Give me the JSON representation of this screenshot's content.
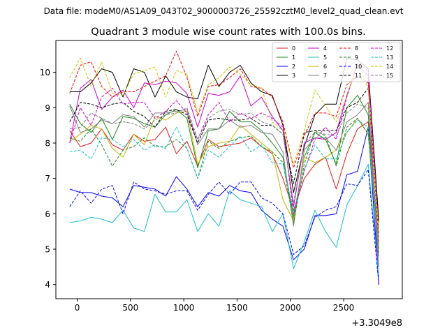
{
  "chart_data": {
    "type": "line",
    "suptitle": "Data file: modeM0/AS1A09_043T02_9000003726_25592cztM0_level2_quad_clean.evt",
    "title": "Quadrant 3 module wise count rates with 100.0s bins.",
    "xlabel": "",
    "ylabel": "",
    "x_offset_label": "+3.3049e8",
    "xlim": [
      -200,
      3050
    ],
    "ylim": [
      3.6,
      10.9
    ],
    "x_ticks": [
      0,
      500,
      1000,
      1500,
      2000,
      2500
    ],
    "y_ticks": [
      4,
      5,
      6,
      7,
      8,
      9,
      10
    ],
    "grid": false,
    "legend_position": "top-right",
    "x": [
      -70,
      30,
      130,
      230,
      330,
      430,
      530,
      630,
      730,
      830,
      930,
      1030,
      1130,
      1230,
      1330,
      1430,
      1530,
      1630,
      1730,
      1830,
      1930,
      2030,
      2130,
      2230,
      2330,
      2430,
      2530,
      2630,
      2730,
      2830
    ],
    "series": [
      {
        "name": "0",
        "color": "#e31a1c",
        "dash": "solid",
        "values": [
          8.35,
          7.9,
          8.0,
          8.4,
          7.95,
          7.8,
          8.25,
          8.05,
          8.1,
          8.45,
          7.7,
          8.05,
          7.35,
          8.1,
          7.9,
          7.95,
          8.0,
          8.15,
          7.9,
          7.7,
          7.0,
          6.1,
          7.0,
          7.4,
          7.6,
          6.7,
          7.7,
          8.4,
          8.6,
          5.0
        ]
      },
      {
        "name": "1",
        "color": "#1a8a1a",
        "dash": "solid",
        "values": [
          9.1,
          8.55,
          8.3,
          8.7,
          8.1,
          8.75,
          8.7,
          8.55,
          8.45,
          8.8,
          8.95,
          8.7,
          7.3,
          8.35,
          8.4,
          8.9,
          8.6,
          8.6,
          8.35,
          8.0,
          7.6,
          5.9,
          7.6,
          8.3,
          8.1,
          7.4,
          9.0,
          9.35,
          8.8,
          4.9
        ]
      },
      {
        "name": "2",
        "color": "#0000ff",
        "dash": "solid",
        "values": [
          6.7,
          6.6,
          6.6,
          6.5,
          6.45,
          6.2,
          6.8,
          6.75,
          6.7,
          6.5,
          7.05,
          6.7,
          6.2,
          6.6,
          6.5,
          6.8,
          6.65,
          6.6,
          6.1,
          5.85,
          5.65,
          4.7,
          5.0,
          5.95,
          5.95,
          6.0,
          7.1,
          7.2,
          8.45,
          4.0
        ]
      },
      {
        "name": "3",
        "color": "#000000",
        "dash": "solid",
        "values": [
          9.45,
          9.45,
          9.7,
          10.1,
          10.0,
          9.3,
          10.1,
          10.0,
          9.3,
          9.9,
          9.45,
          9.3,
          9.25,
          10.2,
          9.6,
          10.0,
          10.2,
          9.7,
          9.45,
          9.35,
          8.5,
          6.6,
          7.9,
          8.8,
          9.1,
          9.1,
          10.4,
          10.35,
          10.1,
          5.8
        ]
      },
      {
        "name": "4",
        "color": "#cc00cc",
        "dash": "solid",
        "values": [
          8.0,
          9.55,
          9.8,
          8.95,
          9.3,
          9.5,
          9.0,
          9.7,
          9.65,
          9.75,
          9.7,
          9.4,
          8.45,
          9.4,
          9.35,
          9.45,
          9.9,
          9.05,
          9.3,
          8.75,
          8.35,
          6.2,
          8.0,
          8.15,
          8.1,
          8.3,
          9.35,
          10.2,
          9.9,
          4.0
        ]
      },
      {
        "name": "5",
        "color": "#17becf",
        "dash": "solid",
        "values": [
          5.75,
          5.8,
          5.9,
          5.85,
          5.75,
          6.1,
          5.6,
          5.5,
          6.55,
          6.05,
          6.05,
          6.4,
          5.5,
          6.0,
          5.65,
          6.65,
          6.4,
          6.3,
          6.2,
          5.5,
          6.0,
          4.45,
          5.2,
          6.1,
          5.5,
          5.05,
          6.25,
          6.8,
          7.4,
          4.2
        ]
      },
      {
        "name": "6",
        "color": "#c8b400",
        "dash": "solid",
        "values": [
          8.05,
          8.25,
          8.5,
          8.4,
          7.85,
          7.6,
          8.25,
          7.95,
          8.75,
          8.65,
          8.85,
          8.9,
          7.4,
          7.9,
          8.0,
          8.05,
          8.5,
          8.25,
          8.0,
          7.75,
          6.4,
          5.8,
          7.6,
          7.45,
          7.6,
          7.8,
          8.3,
          8.7,
          8.25,
          4.9
        ]
      },
      {
        "name": "7",
        "color": "#808080",
        "dash": "solid",
        "values": [
          9.05,
          8.3,
          8.4,
          8.65,
          8.55,
          8.8,
          8.75,
          8.45,
          8.85,
          8.85,
          8.9,
          8.95,
          7.95,
          8.4,
          8.4,
          8.65,
          8.45,
          8.5,
          8.3,
          8.25,
          7.75,
          5.65,
          7.8,
          8.15,
          8.15,
          7.8,
          8.6,
          8.8,
          9.15,
          4.5
        ]
      },
      {
        "name": "8",
        "color": "#ff0000",
        "dash": "dashed",
        "values": [
          9.4,
          10.2,
          10.3,
          9.6,
          9.3,
          9.45,
          9.45,
          9.6,
          9.75,
          9.9,
          10.6,
          9.85,
          8.75,
          9.6,
          9.65,
          9.85,
          10.1,
          9.6,
          9.55,
          9.3,
          8.6,
          7.3,
          8.2,
          8.85,
          8.85,
          8.75,
          9.65,
          9.9,
          9.7,
          5.2
        ]
      },
      {
        "name": "9",
        "color": "#1a8a1a",
        "dash": "dashed",
        "values": [
          8.15,
          8.05,
          8.4,
          7.95,
          7.35,
          7.8,
          7.9,
          8.15,
          7.9,
          7.9,
          8.1,
          7.85,
          7.0,
          8.05,
          7.85,
          8.05,
          8.15,
          8.2,
          7.9,
          7.75,
          7.45,
          5.75,
          7.4,
          8.35,
          8.2,
          7.35,
          8.45,
          8.7,
          8.25,
          4.8
        ]
      },
      {
        "name": "10",
        "color": "#0000ff",
        "dash": "dashed",
        "values": [
          6.2,
          6.65,
          6.3,
          6.7,
          6.8,
          6.0,
          6.9,
          6.7,
          6.65,
          6.55,
          6.65,
          6.65,
          6.1,
          6.55,
          6.9,
          6.55,
          6.9,
          6.9,
          6.45,
          6.3,
          6.0,
          4.85,
          5.1,
          5.9,
          6.1,
          6.2,
          6.85,
          6.8,
          7.25,
          4.0
        ]
      },
      {
        "name": "11",
        "color": "#000000",
        "dash": "dashed",
        "values": [
          8.6,
          9.15,
          9.1,
          9.0,
          9.1,
          9.15,
          8.9,
          8.75,
          8.45,
          8.9,
          8.95,
          8.8,
          8.0,
          8.65,
          8.7,
          8.65,
          8.65,
          8.7,
          8.5,
          8.5,
          8.25,
          6.85,
          8.3,
          8.35,
          8.35,
          8.35,
          9.0,
          9.15,
          9.55,
          5.6
        ]
      },
      {
        "name": "12",
        "color": "#cc00cc",
        "dash": "dashed",
        "values": [
          8.0,
          9.0,
          8.5,
          9.3,
          9.55,
          9.1,
          9.15,
          9.15,
          8.7,
          8.9,
          9.2,
          8.85,
          8.1,
          8.8,
          9.15,
          8.6,
          8.85,
          8.7,
          8.85,
          8.7,
          8.45,
          6.0,
          7.2,
          8.1,
          8.45,
          8.1,
          9.3,
          10.25,
          10.05,
          5.4
        ]
      },
      {
        "name": "13",
        "color": "#17becf",
        "dash": "dashed",
        "values": [
          7.75,
          7.8,
          7.55,
          8.15,
          8.1,
          7.9,
          8.1,
          7.8,
          7.95,
          7.85,
          8.45,
          7.85,
          7.0,
          7.8,
          7.6,
          7.9,
          8.2,
          7.75,
          7.95,
          7.45,
          7.4,
          6.05,
          7.25,
          7.95,
          7.55,
          7.55,
          8.3,
          8.65,
          8.45,
          4.8
        ]
      },
      {
        "name": "14",
        "color": "#c8c800",
        "dash": "dashed",
        "values": [
          9.85,
          10.4,
          9.6,
          10.3,
          9.4,
          9.35,
          9.95,
          10.05,
          10.15,
          9.3,
          10.05,
          9.95,
          8.85,
          9.65,
          9.85,
          10.15,
          9.95,
          9.65,
          9.55,
          8.6,
          8.35,
          7.4,
          8.35,
          9.5,
          9.05,
          8.6,
          9.3,
          10.3,
          9.55,
          5.5
        ]
      },
      {
        "name": "15",
        "color": "#808080",
        "dash": "dashed",
        "values": [
          8.4,
          8.45,
          8.85,
          8.7,
          8.55,
          8.6,
          8.55,
          8.4,
          8.65,
          8.8,
          8.85,
          9.0,
          8.1,
          8.7,
          8.9,
          8.95,
          8.8,
          8.85,
          8.6,
          8.5,
          8.25,
          6.3,
          8.0,
          8.3,
          8.25,
          8.2,
          8.85,
          9.1,
          9.0,
          5.1
        ]
      }
    ]
  }
}
